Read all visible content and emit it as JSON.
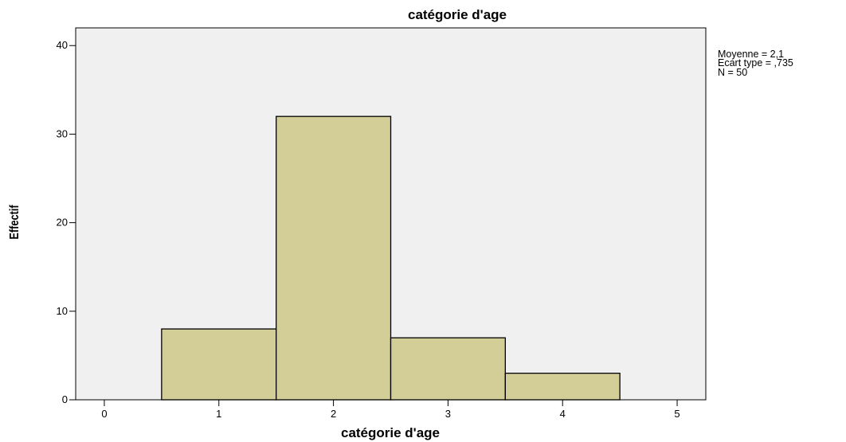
{
  "chart_data": {
    "type": "bar",
    "title": "catégorie d'age",
    "xlabel": "catégorie d'age",
    "ylabel": "Effectif",
    "bins": [
      {
        "x": 1,
        "count": 8
      },
      {
        "x": 2,
        "count": 32
      },
      {
        "x": 3,
        "count": 7
      },
      {
        "x": 4,
        "count": 3
      }
    ],
    "xlim": [
      -0.25,
      5.25
    ],
    "ylim": [
      0,
      42
    ],
    "x_ticks": [
      0,
      1,
      2,
      3,
      4,
      5
    ],
    "y_ticks": [
      0,
      10,
      20,
      30,
      40
    ],
    "grid": false,
    "colors": {
      "plot_background": "#F0F0F0",
      "bar_fill": "#D3CE97",
      "bar_stroke": "#000000"
    }
  },
  "stats": {
    "moyenne": "Moyenne = 2,1",
    "ecart_type": "Ecart type = ,735",
    "n": "N = 50"
  }
}
